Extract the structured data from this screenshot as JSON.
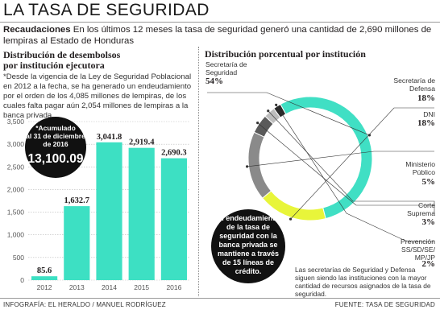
{
  "header": {
    "title": "LA TASA DE SEGURIDAD",
    "lead_bold": "Recaudaciones",
    "lead_text": " En los últimos 12 meses la tasa de seguridad generó una cantidad de 2,690 millones de lempiras al Estado de Honduras"
  },
  "left_panel": {
    "heading_line1": "Distribución de desembolsos",
    "heading_line2": "por institución ejecutora",
    "note": "*Desde la vigencia de la Ley de Seguridad Poblacional en 2012 a la fecha, se ha generado un endeudamiento por el orden de los 4,085 millones de lempiras, de los cuales falta pagar aún 2,054 millones de lempiras a la banca privada.",
    "callout": {
      "line1": "*Acumulado",
      "line2": "al 31 de diciembre",
      "line3": "de 2016",
      "value": "13,100.09"
    }
  },
  "right_panel": {
    "heading": "Distribución porcentual por institución",
    "callout_lines": [
      "El endeudamiento",
      "de la tasa de",
      "seguridad con la",
      "banca privada se",
      "mantiene a través",
      "de 15 líneas de",
      "crédito."
    ],
    "note": "Las secretarías de Seguridad y Defensa siguen siendo las instituciones con la mayor cantidad de recursos asignados de la tasa de seguridad."
  },
  "footer": {
    "credit": "INFOGRAFÍA: EL HERALDO / MANUEL RODRÍGUEZ",
    "source": "FUENTE: TASA DE SEGURIDAD"
  },
  "chart_data": [
    {
      "type": "bar",
      "title": "Distribución de desembolsos por institución ejecutora",
      "categories": [
        "2012",
        "2013",
        "2014",
        "2015",
        "2016"
      ],
      "values": [
        85.6,
        1632.7,
        3041.8,
        2919.4,
        2690.3
      ],
      "value_labels": [
        "85.6",
        "1,632.7",
        "3,041.8",
        "2,919.4",
        "2,690.3"
      ],
      "yticks": [
        0,
        500,
        1000,
        1500,
        2000,
        2500,
        3000,
        3500
      ],
      "ytick_labels": [
        "0",
        "500",
        "1,000",
        "1,500",
        "2,000",
        "2,500",
        "3,000",
        "3,500"
      ],
      "ylim": [
        0,
        3500
      ],
      "grid": true,
      "color": "#3de0c3"
    },
    {
      "type": "pie",
      "title": "Distribución porcentual por institución",
      "slices": [
        {
          "label_lines": [
            "Secretaría de",
            "Seguridad"
          ],
          "value": 54,
          "value_label": "54%",
          "color": "#40dfc4"
        },
        {
          "label_lines": [
            "Secretaría de",
            "Defensa"
          ],
          "value": 18,
          "value_label": "18%",
          "color": "#e8f53a"
        },
        {
          "label_lines": [
            "DNI"
          ],
          "value": 18,
          "value_label": "18%",
          "color": "#8a8a8a"
        },
        {
          "label_lines": [
            "Ministerio",
            "Público"
          ],
          "value": 5,
          "value_label": "5%",
          "color": "#5a5a5a"
        },
        {
          "label_lines": [
            "Corte",
            "Suprema"
          ],
          "value": 3,
          "value_label": "3%",
          "color": "#bdbdbd"
        },
        {
          "label_lines": [
            "Prevención",
            "SS/SD/SE/",
            "MP/JP"
          ],
          "value": 2,
          "value_label": "2%",
          "color": "#2a2a2a"
        }
      ]
    }
  ]
}
